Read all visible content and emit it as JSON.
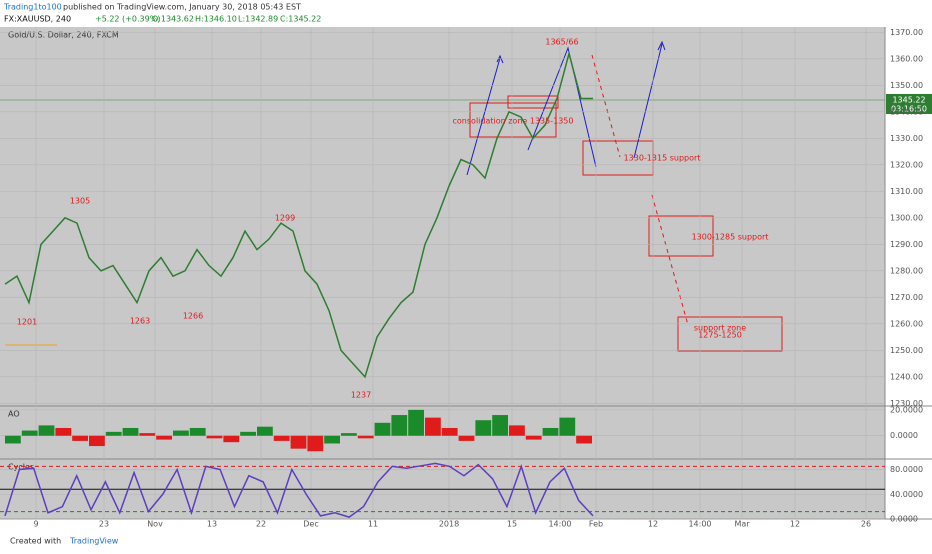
{
  "header": {
    "publisher": "Trading1to100",
    "published": "published on TradingView.com, January 30, 2018 05:43 EST",
    "symbol": "FX:XAUUSD, 240",
    "change": "+5.22 (+0.39%)",
    "open": "O:1343.62",
    "high": "H:1346.10",
    "low": "L:1342.89",
    "close": "C:1345.22",
    "instrument": "Gold/U.S. Dollar, 240, FXCM",
    "last_price": "1345.22",
    "countdown": "03:16:50"
  },
  "footer": {
    "created": "Created with",
    "brand": "TradingView"
  },
  "chart_data": [
    {
      "type": "line",
      "name": "price",
      "color": "#2e7d32",
      "x": [
        0,
        1,
        2,
        3,
        4,
        5,
        6,
        7,
        8,
        9,
        10,
        11,
        12,
        13,
        14,
        15,
        16,
        17,
        18,
        19,
        20,
        21,
        22,
        23,
        24,
        25,
        26,
        27,
        28,
        29,
        30,
        31,
        32,
        33,
        34,
        35,
        36,
        37,
        38,
        39,
        40,
        41,
        42,
        43,
        44,
        45,
        46,
        47,
        48,
        49
      ],
      "series": [
        {
          "name": "XAUUSD",
          "color": "#2e7d32",
          "values": [
            1275,
            1278,
            1268,
            1290,
            1295,
            1300,
            1298,
            1285,
            1280,
            1282,
            1275,
            1268,
            1280,
            1285,
            1278,
            1280,
            1288,
            1282,
            1278,
            1285,
            1295,
            1288,
            1292,
            1298,
            1295,
            1280,
            1275,
            1265,
            1250,
            1245,
            1240,
            1255,
            1262,
            1268,
            1272,
            1290,
            1300,
            1312,
            1322,
            1320,
            1315,
            1330,
            1340,
            1338,
            1330,
            1335,
            1345,
            1362,
            1345,
            1345
          ]
        }
      ],
      "xlim": [
        0,
        49
      ],
      "ylim": [
        1229,
        1372
      ],
      "yticks": [
        {
          "value": 1230,
          "label": "1230.00"
        },
        {
          "value": 1240,
          "label": "1240.00"
        },
        {
          "value": 1250,
          "label": "1250.00"
        },
        {
          "value": 1260,
          "label": "1260.00"
        },
        {
          "value": 1270,
          "label": "1270.00"
        },
        {
          "value": 1280,
          "label": "1280.00"
        },
        {
          "value": 1290,
          "label": "1290.00"
        },
        {
          "value": 1300,
          "label": "1300.00"
        },
        {
          "value": 1310,
          "label": "1310.00"
        },
        {
          "value": 1320,
          "label": "1320.00"
        },
        {
          "value": 1330,
          "label": "1330.00"
        },
        {
          "value": 1340,
          "label": "1340.00"
        },
        {
          "value": 1350,
          "label": "1350.00"
        },
        {
          "value": 1360,
          "label": "1360.00"
        },
        {
          "value": 1370,
          "label": "1370.00"
        }
      ],
      "xaxis_labels": [
        "9",
        "23",
        "Nov",
        "13",
        "22",
        "Dec",
        "11",
        "2018",
        "15",
        "14:00",
        "Feb",
        "12",
        "14:00",
        "Mar",
        "12",
        "26"
      ],
      "annotations": [
        "1305",
        "1299",
        "1201",
        "1263",
        "1266",
        "1237",
        "1365/66",
        "consolidation zone 1335-1350",
        "1330-1315 support",
        "1300-1285 support",
        "support zone",
        "1275-1250"
      ]
    },
    {
      "type": "bar",
      "title": "AO",
      "up_color": "#1b8a2a",
      "down_color": "#e01b1b",
      "values": [
        -6,
        4,
        8,
        6,
        -4,
        -8,
        3,
        6,
        2,
        -3,
        4,
        6,
        -2,
        -5,
        3,
        7,
        -4,
        -10,
        -12,
        -6,
        2,
        -2,
        10,
        16,
        20,
        14,
        6,
        -4,
        12,
        16,
        8,
        -3,
        6,
        14,
        -6
      ],
      "ylim": [
        -18,
        23
      ],
      "yticks": [
        {
          "value": 0,
          "label": "0.0000"
        },
        {
          "value": 20,
          "label": "20.0000"
        }
      ]
    },
    {
      "type": "line",
      "title": "Cycles",
      "color": "#5b3fbf",
      "values": [
        5,
        80,
        82,
        10,
        20,
        70,
        15,
        60,
        10,
        75,
        12,
        40,
        80,
        10,
        85,
        80,
        20,
        70,
        60,
        10,
        80,
        40,
        5,
        10,
        3,
        20,
        60,
        85,
        82,
        86,
        90,
        85,
        70,
        88,
        65,
        20,
        85,
        10,
        60,
        82,
        30,
        5
      ],
      "ylim": [
        0,
        97
      ],
      "yticks": [
        {
          "value": 0,
          "label": "0.0000"
        },
        {
          "value": 40,
          "label": "40.0000"
        },
        {
          "value": 80,
          "label": "80.0000"
        }
      ],
      "reference_lines": [
        85,
        48,
        12
      ]
    }
  ]
}
